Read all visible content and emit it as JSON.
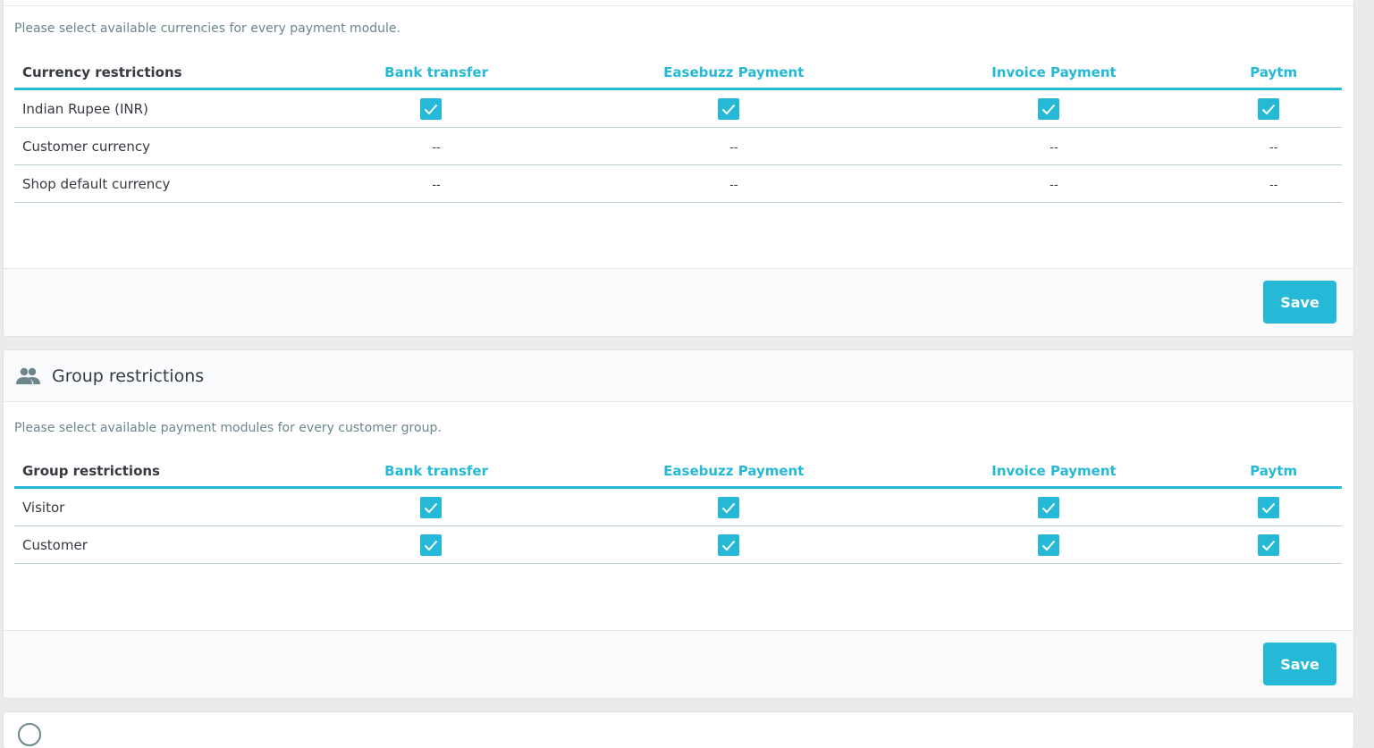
{
  "currency_panel": {
    "help_text": "Please select available currencies for every payment module.",
    "columns": [
      "Currency restrictions",
      "Bank transfer",
      "Easebuzz Payment",
      "Invoice Payment",
      "Paytm"
    ],
    "rows": [
      {
        "label": "Indian Rupee (INR)",
        "cells": [
          "checked",
          "checked",
          "checked",
          "checked"
        ]
      },
      {
        "label": "Customer currency",
        "cells": [
          "--",
          "--",
          "--",
          "--"
        ]
      },
      {
        "label": "Shop default currency",
        "cells": [
          "--",
          "--",
          "--",
          "--"
        ]
      }
    ],
    "save_label": "Save"
  },
  "group_panel": {
    "title": "Group restrictions",
    "icon": "people-icon",
    "help_text": "Please select available payment modules for every customer group.",
    "columns": [
      "Group restrictions",
      "Bank transfer",
      "Easebuzz Payment",
      "Invoice Payment",
      "Paytm"
    ],
    "rows": [
      {
        "label": "Visitor",
        "cells": [
          "checked",
          "checked",
          "checked",
          "checked"
        ]
      },
      {
        "label": "Customer",
        "cells": [
          "checked",
          "checked",
          "checked",
          "checked"
        ]
      }
    ],
    "save_label": "Save"
  },
  "colors": {
    "accent": "#25b9d7",
    "text": "#363a41",
    "muted": "#6c868e",
    "background": "#ebebeb"
  }
}
